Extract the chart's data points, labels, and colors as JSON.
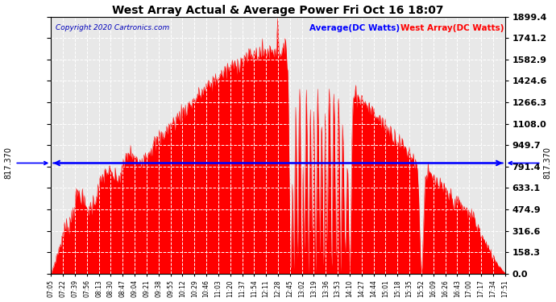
{
  "title": "West Array Actual & Average Power Fri Oct 16 18:07",
  "copyright": "Copyright 2020 Cartronics.com",
  "legend_avg": "Average(DC Watts)",
  "legend_west": "West Array(DC Watts)",
  "avg_value": 817.37,
  "ymax": 1899.4,
  "ymin": 0.0,
  "yticks": [
    0.0,
    158.3,
    316.6,
    474.9,
    633.1,
    791.4,
    949.7,
    1108.0,
    1266.3,
    1424.6,
    1582.9,
    1741.2,
    1899.4
  ],
  "ytick_labels": [
    "0.0",
    "158.3",
    "316.6",
    "474.9",
    "633.1",
    "791.4",
    "949.7",
    "1108.0",
    "1266.3",
    "1424.6",
    "1582.9",
    "1741.2",
    "1899.4"
  ],
  "avg_line_color": "#0000ff",
  "fill_color": "#ff0000",
  "bg_color": "#e8e8e8",
  "grid_color": "white",
  "title_color": "black",
  "copyright_color": "#0000bb",
  "legend_avg_color": "blue",
  "legend_west_color": "red",
  "x_tick_labels": [
    "07:05",
    "07:22",
    "07:39",
    "07:56",
    "08:13",
    "08:30",
    "08:47",
    "09:04",
    "09:21",
    "09:38",
    "09:55",
    "10:12",
    "10:29",
    "10:46",
    "11:03",
    "11:20",
    "11:37",
    "11:54",
    "12:11",
    "12:28",
    "12:45",
    "13:02",
    "13:19",
    "13:36",
    "13:53",
    "14:10",
    "14:27",
    "14:44",
    "15:01",
    "15:18",
    "15:35",
    "15:52",
    "16:09",
    "16:26",
    "16:43",
    "17:00",
    "17:17",
    "17:34",
    "17:51"
  ],
  "left_annotation": "817.370",
  "right_annotation": "817.370"
}
